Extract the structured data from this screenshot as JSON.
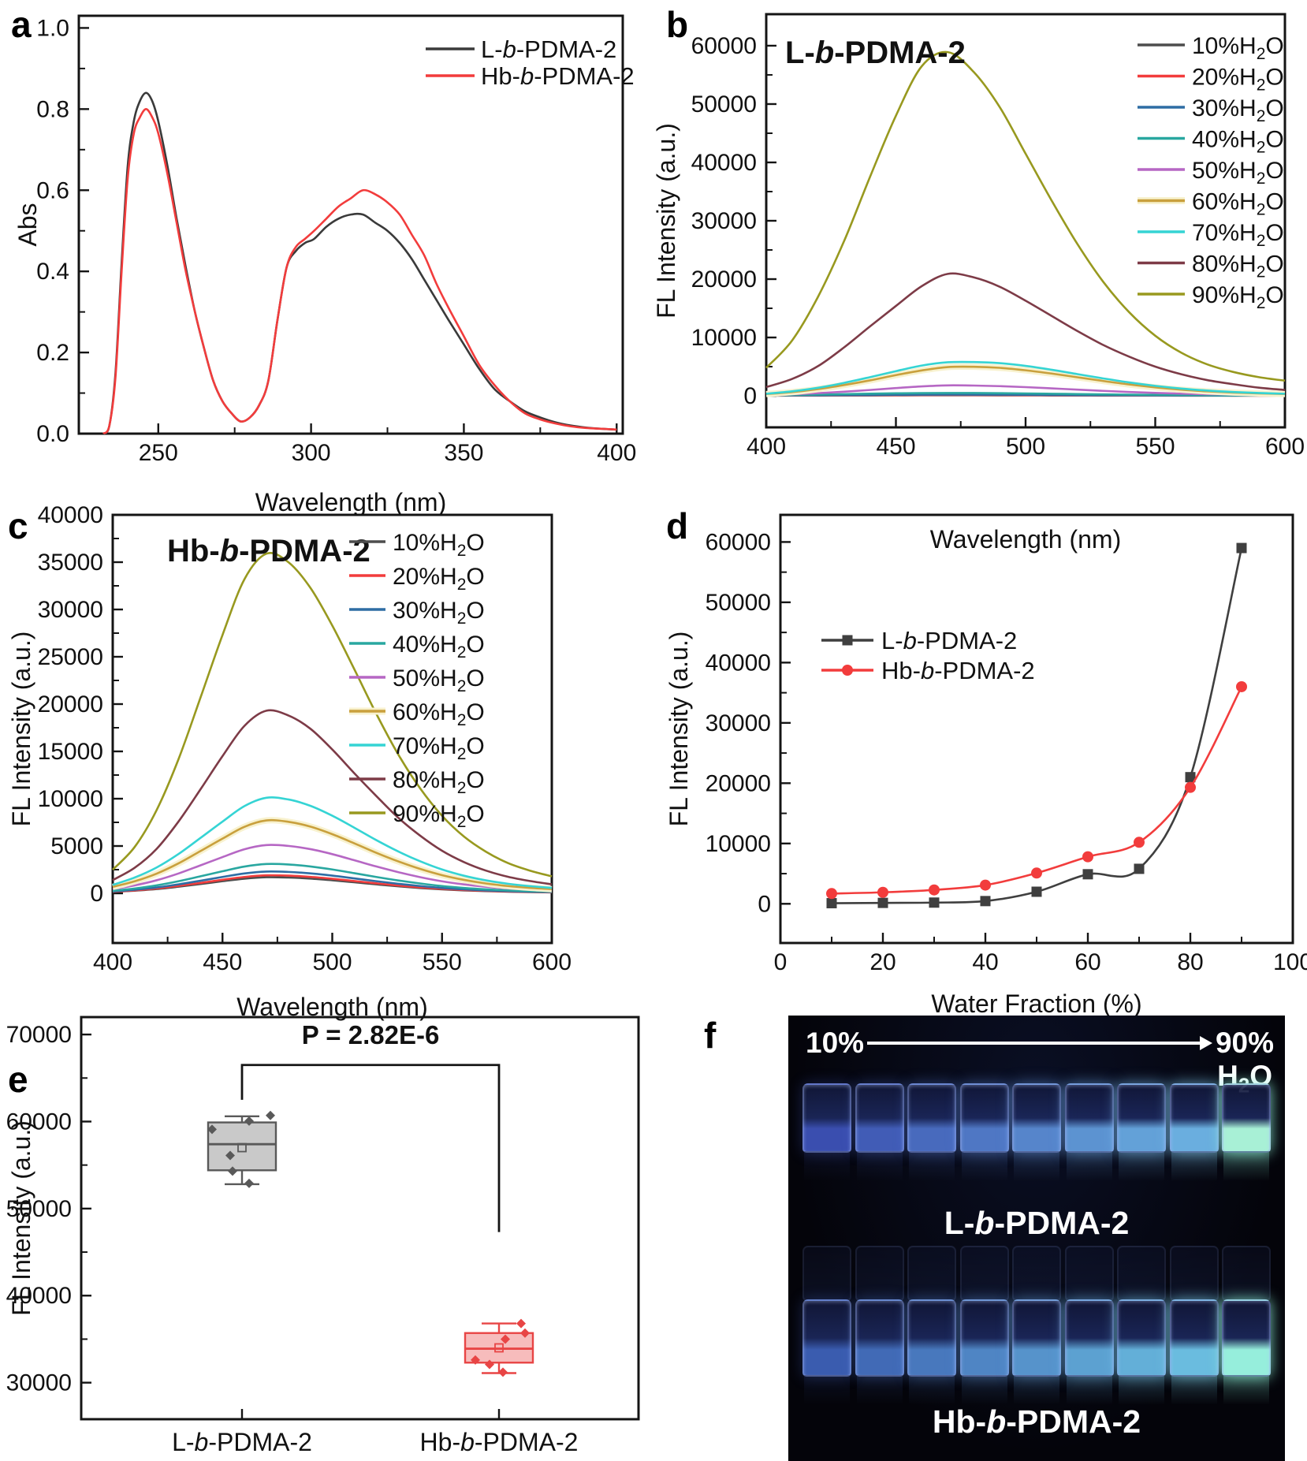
{
  "panel_letters": {
    "a": "a",
    "b": "b",
    "c": "c",
    "d": "d",
    "e": "e",
    "f": "f"
  },
  "chart_data": [
    {
      "id": "a",
      "type": "line",
      "xlabel": "Wavelength (nm)",
      "ylabel": "Abs",
      "xlim": [
        224,
        402
      ],
      "ylim": [
        0,
        1.03
      ],
      "xticks": [
        250,
        300,
        350,
        400
      ],
      "xminors": [
        275,
        325,
        375
      ],
      "yticks": [
        0,
        0.2,
        0.4,
        0.6,
        0.8,
        1.0
      ],
      "yminors": [
        0.1,
        0.3,
        0.5,
        0.7,
        0.9
      ],
      "ytick_decimals": 1,
      "legend_position": "top-right",
      "grid": false,
      "series": [
        {
          "name": "L-b-PDMA-2",
          "color": "#3a3a3a",
          "x": [
            232,
            234,
            236,
            238,
            240,
            242,
            244,
            246,
            248,
            250,
            253,
            256,
            259,
            262,
            265,
            268,
            271,
            274,
            277,
            280,
            283,
            286,
            289,
            292,
            295,
            298,
            301,
            305,
            309,
            313,
            317,
            321,
            325,
            329,
            333,
            337,
            341,
            345,
            350,
            355,
            360,
            365,
            370,
            375,
            380,
            385,
            390,
            395,
            400
          ],
          "y": [
            0.0,
            0.02,
            0.15,
            0.42,
            0.66,
            0.77,
            0.82,
            0.84,
            0.82,
            0.77,
            0.66,
            0.53,
            0.41,
            0.3,
            0.21,
            0.13,
            0.08,
            0.05,
            0.03,
            0.04,
            0.07,
            0.13,
            0.28,
            0.41,
            0.45,
            0.47,
            0.48,
            0.51,
            0.53,
            0.54,
            0.54,
            0.52,
            0.5,
            0.47,
            0.43,
            0.38,
            0.33,
            0.28,
            0.22,
            0.16,
            0.11,
            0.08,
            0.055,
            0.04,
            0.028,
            0.02,
            0.015,
            0.012,
            0.01
          ]
        },
        {
          "name": "Hb-b-PDMA-2",
          "color": "#f23c3c",
          "x": [
            232,
            234,
            236,
            238,
            240,
            242,
            244,
            246,
            248,
            250,
            253,
            256,
            259,
            262,
            265,
            268,
            271,
            274,
            277,
            280,
            283,
            286,
            289,
            292,
            295,
            298,
            301,
            305,
            309,
            313,
            317,
            321,
            325,
            329,
            333,
            337,
            341,
            345,
            350,
            355,
            360,
            365,
            370,
            375,
            380,
            385,
            390,
            395,
            400
          ],
          "y": [
            0.0,
            0.02,
            0.14,
            0.4,
            0.63,
            0.74,
            0.78,
            0.8,
            0.78,
            0.74,
            0.64,
            0.52,
            0.4,
            0.3,
            0.21,
            0.13,
            0.08,
            0.05,
            0.03,
            0.04,
            0.07,
            0.13,
            0.28,
            0.41,
            0.46,
            0.48,
            0.5,
            0.53,
            0.56,
            0.58,
            0.6,
            0.59,
            0.57,
            0.54,
            0.49,
            0.44,
            0.37,
            0.31,
            0.24,
            0.17,
            0.12,
            0.08,
            0.05,
            0.035,
            0.025,
            0.018,
            0.014,
            0.012,
            0.01
          ]
        }
      ]
    },
    {
      "id": "b",
      "type": "line",
      "title": "L-b-PDMA-2",
      "xlabel": "Wavelength (nm)",
      "ylabel": "FL Intensity (a.u.)",
      "xlim": [
        400,
        600
      ],
      "ylim": [
        -5400,
        65400
      ],
      "xticks": [
        400,
        450,
        500,
        550,
        600
      ],
      "xminors": [
        425,
        475,
        525,
        575
      ],
      "yticks": [
        0,
        10000,
        20000,
        30000,
        40000,
        50000,
        60000
      ],
      "yminors": [
        5000,
        15000,
        25000,
        35000,
        45000,
        55000
      ],
      "legend_position": "right",
      "grid": false,
      "x": [
        400,
        410,
        420,
        430,
        440,
        450,
        460,
        470,
        480,
        490,
        500,
        510,
        520,
        530,
        540,
        550,
        560,
        570,
        580,
        590,
        600
      ],
      "series": [
        {
          "name": "10%H2O",
          "color": "#4d4d4d",
          "values": [
            30,
            40,
            50,
            60,
            70,
            80,
            90,
            95,
            92,
            86,
            78,
            68,
            58,
            50,
            43,
            37,
            32,
            28,
            25,
            22,
            20
          ]
        },
        {
          "name": "20%H2O",
          "color": "#f23c3c",
          "values": [
            45,
            60,
            75,
            90,
            105,
            120,
            132,
            140,
            136,
            127,
            115,
            101,
            88,
            76,
            65,
            55,
            47,
            40,
            35,
            30,
            27
          ]
        },
        {
          "name": "30%H2O",
          "color": "#2e6da4",
          "values": [
            60,
            80,
            100,
            125,
            150,
            175,
            195,
            208,
            202,
            190,
            172,
            152,
            130,
            110,
            92,
            77,
            64,
            54,
            46,
            40,
            35
          ]
        },
        {
          "name": "40%H2O",
          "color": "#29a7a0",
          "values": [
            90,
            140,
            210,
            290,
            370,
            430,
            470,
            492,
            482,
            452,
            410,
            358,
            303,
            250,
            202,
            161,
            127,
            100,
            80,
            64,
            52
          ]
        },
        {
          "name": "50%H2O",
          "color": "#b667c4",
          "values": [
            130,
            260,
            460,
            710,
            1000,
            1330,
            1620,
            1790,
            1760,
            1660,
            1490,
            1280,
            1060,
            850,
            660,
            500,
            375,
            280,
            212,
            162,
            128
          ]
        },
        {
          "name": "60%H2O",
          "color": "#c9a03d",
          "halo": "#f8f2cf",
          "values": [
            300,
            640,
            1150,
            1850,
            2650,
            3550,
            4350,
            4930,
            4980,
            4800,
            4380,
            3820,
            3180,
            2540,
            1950,
            1450,
            1060,
            770,
            560,
            415,
            315
          ]
        },
        {
          "name": "70%H2O",
          "color": "#35d4d4",
          "values": [
            360,
            770,
            1380,
            2220,
            3200,
            4230,
            5190,
            5750,
            5790,
            5600,
            5130,
            4470,
            3720,
            2980,
            2290,
            1710,
            1250,
            905,
            655,
            480,
            360
          ]
        },
        {
          "name": "80%H2O",
          "color": "#7d3b47",
          "values": [
            1500,
            2900,
            5100,
            8300,
            11900,
            15400,
            18800,
            20900,
            20300,
            18700,
            16300,
            13700,
            11100,
            8700,
            6700,
            5000,
            3700,
            2700,
            2000,
            1400,
            1000
          ]
        },
        {
          "name": "90%H2O",
          "color": "#98991f",
          "values": [
            4800,
            9500,
            17000,
            26500,
            37500,
            48000,
            56500,
            58900,
            55500,
            49500,
            41500,
            33500,
            26000,
            19500,
            14300,
            10300,
            7400,
            5400,
            4100,
            3200,
            2600
          ]
        }
      ]
    },
    {
      "id": "c",
      "type": "line",
      "title": "Hb-b-PDMA-2",
      "xlabel": "Wavelength (nm)",
      "ylabel": "FL Intensity (a.u.)",
      "xlim": [
        400,
        600
      ],
      "ylim": [
        -5250,
        40000
      ],
      "xticks": [
        400,
        450,
        500,
        550,
        600
      ],
      "xminors": [
        425,
        475,
        525,
        575
      ],
      "yticks": [
        0,
        5000,
        10000,
        15000,
        20000,
        25000,
        30000,
        35000,
        40000
      ],
      "yminors": [
        2500,
        7500,
        12500,
        17500,
        22500,
        27500,
        32500,
        37500
      ],
      "legend_position": "right",
      "grid": false,
      "x": [
        400,
        410,
        420,
        430,
        440,
        450,
        460,
        470,
        480,
        490,
        500,
        510,
        520,
        530,
        540,
        550,
        560,
        570,
        580,
        590,
        600
      ],
      "series": [
        {
          "name": "10%H2O",
          "color": "#4d4d4d",
          "values": [
            150,
            280,
            450,
            700,
            980,
            1280,
            1550,
            1700,
            1670,
            1560,
            1380,
            1170,
            950,
            740,
            560,
            420,
            310,
            230,
            170,
            130,
            100
          ]
        },
        {
          "name": "20%H2O",
          "color": "#f23c3c",
          "values": [
            170,
            310,
            510,
            790,
            1100,
            1430,
            1730,
            1900,
            1870,
            1740,
            1540,
            1300,
            1060,
            830,
            630,
            470,
            350,
            260,
            190,
            145,
            110
          ]
        },
        {
          "name": "30%H2O",
          "color": "#2e6da4",
          "values": [
            200,
            380,
            620,
            950,
            1330,
            1730,
            2100,
            2300,
            2260,
            2110,
            1870,
            1580,
            1280,
            1010,
            770,
            570,
            420,
            310,
            230,
            175,
            135
          ]
        },
        {
          "name": "40%H2O",
          "color": "#29a7a0",
          "values": [
            270,
            510,
            840,
            1280,
            1800,
            2330,
            2830,
            3100,
            3050,
            2840,
            2520,
            2130,
            1730,
            1360,
            1040,
            770,
            570,
            420,
            310,
            235,
            180
          ]
        },
        {
          "name": "50%H2O",
          "color": "#b667c4",
          "values": [
            450,
            840,
            1380,
            2100,
            2960,
            3830,
            4660,
            5100,
            5010,
            4670,
            4140,
            3500,
            2840,
            2240,
            1710,
            1270,
            940,
            690,
            510,
            385,
            295
          ]
        },
        {
          "name": "60%H2O",
          "color": "#c9a03d",
          "halo": "#f8f2cf",
          "values": [
            680,
            1270,
            2080,
            3170,
            4470,
            5780,
            7030,
            7700,
            7560,
            7050,
            6250,
            5290,
            4290,
            3380,
            2580,
            1920,
            1420,
            1040,
            770,
            580,
            445
          ]
        },
        {
          "name": "70%H2O",
          "color": "#35d4d4",
          "values": [
            890,
            1670,
            2730,
            4160,
            5860,
            7580,
            9220,
            10100,
            9920,
            9250,
            8200,
            6940,
            5630,
            4430,
            3390,
            2520,
            1860,
            1370,
            1010,
            760,
            580
          ]
        },
        {
          "name": "80%H2O",
          "color": "#7d3b47",
          "values": [
            1400,
            2700,
            4700,
            7600,
            11000,
            14500,
            17700,
            19300,
            18800,
            17400,
            15200,
            12700,
            10300,
            8000,
            6100,
            4500,
            3300,
            2400,
            1750,
            1300,
            950
          ]
        },
        {
          "name": "90%H2O",
          "color": "#98991f",
          "values": [
            2500,
            4900,
            8800,
            14200,
            20700,
            27300,
            33200,
            35900,
            35000,
            32300,
            28300,
            23700,
            19000,
            14700,
            11100,
            8200,
            6000,
            4400,
            3200,
            2400,
            1800
          ]
        }
      ]
    },
    {
      "id": "d",
      "type": "line",
      "xlabel": "Water Fraction (%)",
      "ylabel": "FL Intensity (a.u.)",
      "xlim": [
        0,
        100
      ],
      "ylim": [
        -6500,
        64500
      ],
      "xticks": [
        0,
        20,
        40,
        60,
        80,
        100
      ],
      "xminors": [
        10,
        30,
        50,
        70,
        90
      ],
      "yticks": [
        0,
        10000,
        20000,
        30000,
        40000,
        50000,
        60000
      ],
      "yminors": [
        5000,
        15000,
        25000,
        35000,
        45000,
        55000
      ],
      "legend_position": "upper-left",
      "grid": false,
      "x": [
        10,
        20,
        30,
        40,
        50,
        60,
        70,
        80,
        90
      ],
      "series": [
        {
          "name": "L-b-PDMA-2",
          "color": "#3f3f3f",
          "marker": "square",
          "values": [
            100,
            150,
            200,
            450,
            2000,
            4900,
            5800,
            21000,
            59000
          ]
        },
        {
          "name": "Hb-b-PDMA-2",
          "color": "#f23c3c",
          "marker": "circle",
          "values": [
            1700,
            1900,
            2300,
            3100,
            5100,
            7800,
            10200,
            19300,
            36000
          ]
        }
      ]
    },
    {
      "id": "e",
      "type": "box",
      "ylabel": "FL Intensity (a.u.)",
      "ylim": [
        25800,
        72000
      ],
      "yticks": [
        30000,
        40000,
        50000,
        60000,
        70000
      ],
      "yminors": [
        35000,
        45000,
        55000,
        65000
      ],
      "categories": [
        "L-b-PDMA-2",
        "Hb-b-PDMA-2"
      ],
      "p_label": "P = 2.82E-6",
      "bracket": {
        "left_bottom": 62500,
        "top": 66500,
        "right_bottom": 47300,
        "p_y": 68900
      },
      "boxes": [
        {
          "name": "L-b-PDMA-2",
          "color": "#595959",
          "fill": "#c9c9c9",
          "whisker_low": 52800,
          "q1": 54400,
          "median": 57400,
          "mean": 57000,
          "q3": 59900,
          "whisker_high": 60600,
          "points": [
            [
              -38,
              59100
            ],
            [
              9,
              60050
            ],
            [
              36,
              60700
            ],
            [
              -15,
              56100
            ],
            [
              -12,
              54300
            ],
            [
              9,
              52900
            ]
          ]
        },
        {
          "name": "Hb-b-PDMA-2",
          "color": "#e84545",
          "fill": "#f7bcbc",
          "whisker_low": 31100,
          "q1": 32300,
          "median": 33900,
          "mean": 34000,
          "q3": 35700,
          "whisker_high": 36800,
          "points": [
            [
              28,
              36800
            ],
            [
              33,
              35700
            ],
            [
              8,
              35000
            ],
            [
              -30,
              32600
            ],
            [
              -12,
              32100
            ],
            [
              5,
              31200
            ]
          ]
        }
      ]
    }
  ],
  "photo_panel": {
    "gradient_start_label": "10%",
    "gradient_end_label": "90%",
    "solvent_label": "H2O",
    "row1_label": "L-b-PDMA-2",
    "row2_label": "Hb-b-PDMA-2",
    "vials_per_row": 9
  }
}
